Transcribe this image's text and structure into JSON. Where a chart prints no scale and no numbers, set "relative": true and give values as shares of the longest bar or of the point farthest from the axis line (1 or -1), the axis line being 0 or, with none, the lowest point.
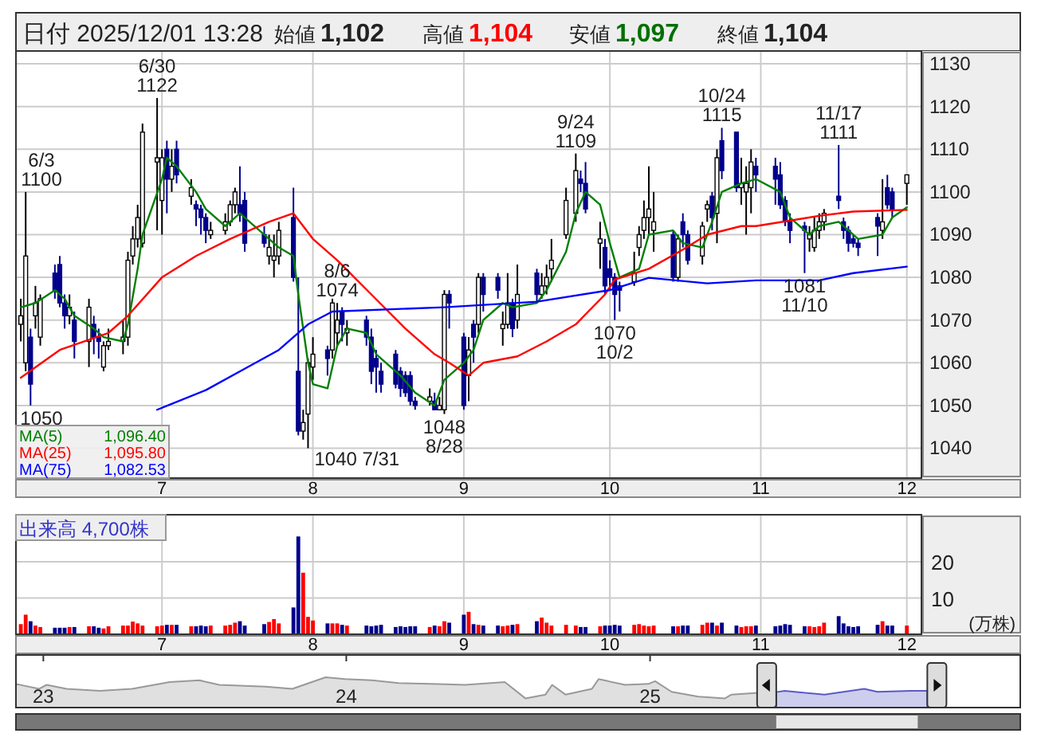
{
  "chart_data": [
    {
      "type": "other",
      "annotations": [
        "日付 2025/12/01 13:28",
        "始値 1,102",
        "高値 1,104",
        "安値 1,097",
        "終値 1,104"
      ],
      "colors": [
        "#222222",
        "#222222",
        "#ff0000",
        "#007000",
        "#222222"
      ]
    },
    {
      "type": "candlestick",
      "x": [
        "2025-06-02",
        "2025-06-03",
        "2025-06-04",
        "2025-06-05",
        "2025-06-06",
        "2025-06-09",
        "2025-06-10",
        "2025-06-11",
        "2025-06-12",
        "2025-06-13",
        "2025-06-16",
        "2025-06-17",
        "2025-06-18",
        "2025-06-19",
        "2025-06-20",
        "2025-06-23",
        "2025-06-24",
        "2025-06-25",
        "2025-06-26",
        "2025-06-27",
        "2025-06-30",
        "2025-07-01",
        "2025-07-02",
        "2025-07-03",
        "2025-07-04",
        "2025-07-07",
        "2025-07-08",
        "2025-07-09",
        "2025-07-10",
        "2025-07-11",
        "2025-07-14",
        "2025-07-15",
        "2025-07-16",
        "2025-07-17",
        "2025-07-18",
        "2025-07-22",
        "2025-07-23",
        "2025-07-24",
        "2025-07-25",
        "2025-07-28",
        "2025-07-29",
        "2025-07-30",
        "2025-07-31",
        "2025-08-01",
        "2025-08-04",
        "2025-08-05",
        "2025-08-06",
        "2025-08-07",
        "2025-08-08",
        "2025-08-12",
        "2025-08-13",
        "2025-08-14",
        "2025-08-15",
        "2025-08-18",
        "2025-08-19",
        "2025-08-20",
        "2025-08-21",
        "2025-08-22",
        "2025-08-25",
        "2025-08-26",
        "2025-08-27",
        "2025-08-28",
        "2025-08-29",
        "2025-09-01",
        "2025-09-02",
        "2025-09-03",
        "2025-09-04",
        "2025-09-05",
        "2025-09-08",
        "2025-09-09",
        "2025-09-10",
        "2025-09-11",
        "2025-09-12",
        "2025-09-16",
        "2025-09-17",
        "2025-09-18",
        "2025-09-19",
        "2025-09-22",
        "2025-09-24",
        "2025-09-25",
        "2025-09-26",
        "2025-09-29",
        "2025-09-30",
        "2025-10-01",
        "2025-10-02",
        "2025-10-03",
        "2025-10-06",
        "2025-10-07",
        "2025-10-08",
        "2025-10-09",
        "2025-10-10",
        "2025-10-14",
        "2025-10-15",
        "2025-10-16",
        "2025-10-17",
        "2025-10-20",
        "2025-10-21",
        "2025-10-22",
        "2025-10-23",
        "2025-10-24",
        "2025-10-27",
        "2025-10-28",
        "2025-10-29",
        "2025-10-30",
        "2025-10-31",
        "2025-11-04",
        "2025-11-05",
        "2025-11-06",
        "2025-11-07",
        "2025-11-10",
        "2025-11-11",
        "2025-11-12",
        "2025-11-13",
        "2025-11-14",
        "2025-11-17",
        "2025-11-18",
        "2025-11-19",
        "2025-11-20",
        "2025-11-21",
        "2025-11-25",
        "2025-11-26",
        "2025-11-27",
        "2025-11-28",
        "2025-12-01"
      ],
      "ohlc": [
        [
          1069,
          1075,
          1065,
          1071
        ],
        [
          1060,
          1100,
          1058,
          1085
        ],
        [
          1066,
          1068,
          1050,
          1055
        ],
        [
          1071,
          1078,
          1068,
          1074
        ],
        [
          1066,
          1076,
          1064,
          1075
        ],
        [
          1081,
          1083,
          1075,
          1077
        ],
        [
          1083,
          1085,
          1073,
          1074
        ],
        [
          1074,
          1076,
          1068,
          1071
        ],
        [
          1071,
          1076,
          1069,
          1073
        ],
        [
          1070,
          1072,
          1061,
          1065
        ],
        [
          1065,
          1075,
          1059,
          1073
        ],
        [
          1069,
          1071,
          1062,
          1066
        ],
        [
          1066,
          1068,
          1061,
          1065
        ],
        [
          1059,
          1065,
          1058,
          1064
        ],
        [
          1064,
          1068,
          1063,
          1065
        ],
        [
          1065,
          1070,
          1062,
          1066
        ],
        [
          1066,
          1086,
          1064,
          1084
        ],
        [
          1085,
          1092,
          1083,
          1089
        ],
        [
          1089,
          1097,
          1087,
          1094
        ],
        [
          1088,
          1116,
          1087,
          1114
        ],
        [
          1107,
          1122,
          1091,
          1108
        ],
        [
          1098,
          1110,
          1090,
          1108
        ],
        [
          1110,
          1112,
          1095,
          1103
        ],
        [
          1103,
          1110,
          1100,
          1106
        ],
        [
          1110,
          1112,
          1102,
          1104
        ],
        [
          1099,
          1103,
          1097,
          1101
        ],
        [
          1097,
          1098,
          1092,
          1096
        ],
        [
          1096,
          1097,
          1090,
          1094
        ],
        [
          1094,
          1095,
          1088,
          1091
        ],
        [
          1090,
          1093,
          1089,
          1091
        ],
        [
          1091,
          1095,
          1090,
          1093
        ],
        [
          1093,
          1098,
          1092,
          1097
        ],
        [
          1097,
          1101,
          1095,
          1100
        ],
        [
          1097,
          1106,
          1093,
          1095
        ],
        [
          1098,
          1100,
          1086,
          1088
        ],
        [
          1090,
          1092,
          1087,
          1088
        ],
        [
          1085,
          1090,
          1083,
          1087
        ],
        [
          1084,
          1090,
          1080,
          1085
        ],
        [
          1085,
          1093,
          1083,
          1091
        ],
        [
          1094,
          1101,
          1079,
          1080
        ],
        [
          1058,
          1080,
          1043,
          1044
        ],
        [
          1044,
          1049,
          1042,
          1046
        ],
        [
          1048,
          1061,
          1040,
          1060
        ],
        [
          1059,
          1066,
          1056,
          1062
        ],
        [
          1063,
          1064,
          1057,
          1061
        ],
        [
          1063,
          1075,
          1061,
          1074
        ],
        [
          1067,
          1074,
          1064,
          1070
        ],
        [
          1072,
          1073,
          1065,
          1069
        ],
        [
          1067,
          1070,
          1064,
          1068
        ],
        [
          1070,
          1071,
          1064,
          1066
        ],
        [
          1066,
          1068,
          1055,
          1058
        ],
        [
          1061,
          1063,
          1053,
          1059
        ],
        [
          1058,
          1060,
          1053,
          1055
        ],
        [
          1062,
          1063,
          1054,
          1055
        ],
        [
          1058,
          1059,
          1052,
          1054
        ],
        [
          1057,
          1058,
          1052,
          1053
        ],
        [
          1057,
          1058,
          1050,
          1051
        ],
        [
          1051,
          1052,
          1049,
          1050
        ],
        [
          1051,
          1054,
          1050,
          1052
        ],
        [
          1051,
          1053,
          1049,
          1049
        ],
        [
          1049,
          1052,
          1049,
          1050
        ],
        [
          1049,
          1077,
          1048,
          1076
        ],
        [
          1076,
          1077,
          1068,
          1074
        ],
        [
          1066,
          1067,
          1049,
          1050
        ],
        [
          1057,
          1066,
          1051,
          1063
        ],
        [
          1069,
          1070,
          1060,
          1066
        ],
        [
          1069,
          1081,
          1067,
          1080
        ],
        [
          1080,
          1081,
          1072,
          1076
        ],
        [
          1080,
          1081,
          1075,
          1077
        ],
        [
          1068,
          1072,
          1064,
          1069
        ],
        [
          1069,
          1081,
          1068,
          1074
        ],
        [
          1074,
          1075,
          1066,
          1068
        ],
        [
          1070,
          1083,
          1068,
          1076
        ],
        [
          1081,
          1082,
          1074,
          1076
        ],
        [
          1076,
          1081,
          1075,
          1078
        ],
        [
          1078,
          1083,
          1076,
          1080
        ],
        [
          1082,
          1089,
          1079,
          1084
        ],
        [
          1090,
          1101,
          1089,
          1098
        ],
        [
          1095,
          1109,
          1093,
          1105
        ],
        [
          1103,
          1105,
          1100,
          1102
        ],
        [
          1102,
          1107,
          1095,
          1096
        ],
        [
          1088,
          1093,
          1082,
          1089
        ],
        [
          1087,
          1089,
          1076,
          1078
        ],
        [
          1082,
          1084,
          1077,
          1080
        ],
        [
          1080,
          1081,
          1070,
          1076
        ],
        [
          1078,
          1079,
          1072,
          1077
        ],
        [
          1079,
          1086,
          1078,
          1081
        ],
        [
          1087,
          1092,
          1085,
          1090
        ],
        [
          1091,
          1098,
          1089,
          1094
        ],
        [
          1094,
          1106,
          1090,
          1096
        ],
        [
          1091,
          1100,
          1086,
          1093
        ],
        [
          1090,
          1091,
          1079,
          1080
        ],
        [
          1080,
          1090,
          1079,
          1089
        ],
        [
          1093,
          1095,
          1087,
          1090
        ],
        [
          1090,
          1091,
          1083,
          1084
        ],
        [
          1085,
          1093,
          1083,
          1092
        ],
        [
          1096,
          1098,
          1093,
          1097
        ],
        [
          1099,
          1100,
          1091,
          1094
        ],
        [
          1095,
          1110,
          1088,
          1108
        ],
        [
          1112,
          1115,
          1103,
          1105
        ],
        [
          1114,
          1114,
          1100,
          1101
        ],
        [
          1101,
          1108,
          1097,
          1102
        ],
        [
          1100,
          1106,
          1090,
          1102
        ],
        [
          1101,
          1110,
          1095,
          1107
        ],
        [
          1106,
          1108,
          1100,
          1104
        ],
        [
          1106,
          1108,
          1097,
          1103
        ],
        [
          1104,
          1107,
          1096,
          1097
        ],
        [
          1098,
          1099,
          1092,
          1093
        ],
        [
          1093,
          1095,
          1088,
          1091
        ],
        [
          1092,
          1093,
          1081,
          1091
        ],
        [
          1089,
          1092,
          1086,
          1090
        ],
        [
          1087,
          1094,
          1086,
          1091
        ],
        [
          1091,
          1095,
          1089,
          1093
        ],
        [
          1093,
          1096,
          1091,
          1095
        ],
        [
          1099,
          1111,
          1096,
          1098
        ],
        [
          1093,
          1094,
          1089,
          1091
        ],
        [
          1091,
          1092,
          1086,
          1088
        ],
        [
          1089,
          1090,
          1087,
          1088
        ],
        [
          1088,
          1089,
          1085,
          1087
        ],
        [
          1094,
          1095,
          1085,
          1092
        ],
        [
          1091,
          1103,
          1089,
          1093
        ],
        [
          1101,
          1104,
          1096,
          1097
        ],
        [
          1100,
          1101,
          1094,
          1096
        ],
        [
          1102,
          1104,
          1097,
          1104
        ]
      ],
      "series": [
        {
          "name": "MA(5) 1,096.40",
          "type": "line",
          "color": "#008000",
          "x": [
            "2025-06-02",
            "2025-06-05",
            "2025-06-09",
            "2025-06-11",
            "2025-06-13",
            "2025-06-17",
            "2025-06-19",
            "2025-06-23",
            "2025-06-24",
            "2025-06-26",
            "2025-06-27",
            "2025-07-01",
            "2025-07-02",
            "2025-07-04",
            "2025-07-08",
            "2025-07-10",
            "2025-07-14",
            "2025-07-16",
            "2025-07-17",
            "2025-07-18",
            "2025-07-23",
            "2025-07-25",
            "2025-07-28",
            "2025-07-29",
            "2025-07-31",
            "2025-08-01",
            "2025-08-04",
            "2025-08-06",
            "2025-08-08",
            "2025-08-12",
            "2025-08-14",
            "2025-08-19",
            "2025-08-22",
            "2025-08-26",
            "2025-08-28",
            "2025-09-01",
            "2025-09-03",
            "2025-09-05",
            "2025-09-09",
            "2025-09-11",
            "2025-09-16",
            "2025-09-18",
            "2025-09-22",
            "2025-09-24",
            "2025-09-26",
            "2025-09-29",
            "2025-10-01",
            "2025-10-03",
            "2025-10-07",
            "2025-10-09",
            "2025-10-14",
            "2025-10-16",
            "2025-10-20",
            "2025-10-22",
            "2025-10-24",
            "2025-10-28",
            "2025-10-31",
            "2025-11-05",
            "2025-11-07",
            "2025-11-11",
            "2025-11-13",
            "2025-11-17",
            "2025-11-19",
            "2025-11-21",
            "2025-11-26",
            "2025-11-28",
            "2025-12-01"
          ],
          "values": [
            1073,
            1074,
            1077,
            1075,
            1071,
            1068,
            1066,
            1065,
            1069,
            1082,
            1090,
            1103,
            1108,
            1106,
            1100,
            1096,
            1092,
            1094,
            1095,
            1094,
            1089,
            1087,
            1085,
            1076,
            1060,
            1055,
            1054,
            1064,
            1068,
            1067,
            1062,
            1057,
            1053,
            1050,
            1056,
            1060,
            1063,
            1070,
            1074,
            1073,
            1074,
            1077,
            1086,
            1095,
            1100,
            1097,
            1088,
            1080,
            1082,
            1090,
            1091,
            1088,
            1087,
            1093,
            1100,
            1102,
            1103,
            1100,
            1094,
            1090,
            1092,
            1093,
            1091,
            1089,
            1090,
            1094,
            1096.4
          ]
        },
        {
          "name": "MA(25) 1,095.80",
          "type": "line",
          "color": "#ff0000",
          "x": [
            "2025-06-02",
            "2025-06-10",
            "2025-06-20",
            "2025-06-24",
            "2025-07-01",
            "2025-07-08",
            "2025-07-15",
            "2025-07-23",
            "2025-07-28",
            "2025-08-01",
            "2025-08-06",
            "2025-08-13",
            "2025-08-20",
            "2025-08-26",
            "2025-08-29",
            "2025-09-02",
            "2025-09-05",
            "2025-09-12",
            "2025-09-18",
            "2025-09-24",
            "2025-09-30",
            "2025-10-02",
            "2025-10-09",
            "2025-10-16",
            "2025-10-21",
            "2025-10-28",
            "2025-10-31",
            "2025-11-13",
            "2025-11-20",
            "2025-12-01"
          ],
          "values": [
            1056.5,
            1063,
            1067,
            1071,
            1080,
            1085,
            1089,
            1093,
            1095,
            1089,
            1084,
            1076,
            1068,
            1062,
            1060,
            1057,
            1060,
            1061.5,
            1065,
            1069,
            1076,
            1079.5,
            1082,
            1086.5,
            1090,
            1092,
            1092,
            1094.4,
            1095.4,
            1095.8
          ]
        },
        {
          "name": "MA(75) 1,082.53",
          "type": "line",
          "color": "#0000ff",
          "x": [
            "2025-06-30",
            "2025-07-10",
            "2025-07-18",
            "2025-07-25",
            "2025-07-31",
            "2025-08-05",
            "2025-08-28",
            "2025-09-16",
            "2025-10-01",
            "2025-10-09",
            "2025-10-21",
            "2025-10-31",
            "2025-11-13",
            "2025-11-20",
            "2025-12-01"
          ],
          "values": [
            1049,
            1053.6,
            1058.6,
            1063,
            1069,
            1072,
            1073,
            1074.3,
            1077,
            1079.9,
            1078.6,
            1079.3,
            1079.3,
            1081,
            1082.5
          ]
        }
      ],
      "annotations": [
        {
          "text": "6/3 1100",
          "x": "2025-06-03",
          "y": 1100
        },
        {
          "text": "1050",
          "x": "2025-06-04",
          "y": 1050
        },
        {
          "text": "6/30 1122",
          "x": "2025-06-30",
          "y": 1122
        },
        {
          "text": "1040 7/31",
          "x": "2025-07-31",
          "y": 1040
        },
        {
          "text": "8/6 1074",
          "x": "2025-08-06",
          "y": 1074
        },
        {
          "text": "1048 8/28",
          "x": "2025-08-28",
          "y": 1048
        },
        {
          "text": "9/24 1109",
          "x": "2025-09-24",
          "y": 1109
        },
        {
          "text": "1070 10/2",
          "x": "2025-10-02",
          "y": 1070
        },
        {
          "text": "10/24 1115",
          "x": "2025-10-24",
          "y": 1115
        },
        {
          "text": "1081 11/10",
          "x": "2025-11-10",
          "y": 1081
        },
        {
          "text": "11/17 1111",
          "x": "2025-11-17",
          "y": 1111
        }
      ],
      "xlim": [
        "2025-06-01",
        "2025-12-04"
      ],
      "xticks": [
        {
          "value": "2025-07-01",
          "label": "7"
        },
        {
          "value": "2025-08-01",
          "label": "8"
        },
        {
          "value": "2025-09-01",
          "label": "9"
        },
        {
          "value": "2025-10-01",
          "label": "10"
        },
        {
          "value": "2025-11-01",
          "label": "11"
        },
        {
          "value": "2025-12-01",
          "label": "12"
        }
      ],
      "ylim": [
        1033,
        1133
      ],
      "yticks": [
        1040,
        1050,
        1060,
        1070,
        1080,
        1090,
        1100,
        1110,
        1120,
        1130
      ],
      "grid": true
    },
    {
      "type": "bar",
      "title": "出来高 4,700株",
      "ylabel": "(万株)",
      "x": [
        "2025-06-02",
        "2025-06-03",
        "2025-06-04",
        "2025-06-05",
        "2025-06-06",
        "2025-06-09",
        "2025-06-10",
        "2025-06-11",
        "2025-06-12",
        "2025-06-13",
        "2025-06-16",
        "2025-06-17",
        "2025-06-18",
        "2025-06-19",
        "2025-06-20",
        "2025-06-23",
        "2025-06-24",
        "2025-06-25",
        "2025-06-26",
        "2025-06-27",
        "2025-06-30",
        "2025-07-01",
        "2025-07-02",
        "2025-07-03",
        "2025-07-04",
        "2025-07-07",
        "2025-07-08",
        "2025-07-09",
        "2025-07-10",
        "2025-07-11",
        "2025-07-14",
        "2025-07-15",
        "2025-07-16",
        "2025-07-17",
        "2025-07-18",
        "2025-07-22",
        "2025-07-23",
        "2025-07-24",
        "2025-07-25",
        "2025-07-28",
        "2025-07-29",
        "2025-07-30",
        "2025-07-31",
        "2025-08-01",
        "2025-08-04",
        "2025-08-05",
        "2025-08-06",
        "2025-08-07",
        "2025-08-08",
        "2025-08-12",
        "2025-08-13",
        "2025-08-14",
        "2025-08-15",
        "2025-08-18",
        "2025-08-19",
        "2025-08-20",
        "2025-08-21",
        "2025-08-22",
        "2025-08-25",
        "2025-08-26",
        "2025-08-27",
        "2025-08-28",
        "2025-08-29",
        "2025-09-01",
        "2025-09-02",
        "2025-09-03",
        "2025-09-04",
        "2025-09-05",
        "2025-09-08",
        "2025-09-09",
        "2025-09-10",
        "2025-09-11",
        "2025-09-12",
        "2025-09-16",
        "2025-09-17",
        "2025-09-18",
        "2025-09-19",
        "2025-09-22",
        "2025-09-24",
        "2025-09-25",
        "2025-09-26",
        "2025-09-29",
        "2025-09-30",
        "2025-10-01",
        "2025-10-02",
        "2025-10-03",
        "2025-10-06",
        "2025-10-07",
        "2025-10-08",
        "2025-10-09",
        "2025-10-10",
        "2025-10-14",
        "2025-10-15",
        "2025-10-16",
        "2025-10-17",
        "2025-10-20",
        "2025-10-21",
        "2025-10-22",
        "2025-10-23",
        "2025-10-24",
        "2025-10-27",
        "2025-10-28",
        "2025-10-29",
        "2025-10-30",
        "2025-10-31",
        "2025-11-04",
        "2025-11-05",
        "2025-11-06",
        "2025-11-07",
        "2025-11-10",
        "2025-11-11",
        "2025-11-12",
        "2025-11-13",
        "2025-11-14",
        "2025-11-17",
        "2025-11-18",
        "2025-11-19",
        "2025-11-20",
        "2025-11-21",
        "2025-11-25",
        "2025-11-26",
        "2025-11-27",
        "2025-11-28",
        "2025-12-01"
      ],
      "values": [
        2.8,
        5.4,
        3.6,
        2.4,
        2,
        1.8,
        1.8,
        1.8,
        2,
        2,
        2.2,
        2.2,
        1.8,
        1.6,
        2.2,
        2.4,
        2.4,
        3.5,
        3,
        2.4,
        2.2,
        2.4,
        2.6,
        2.6,
        2.6,
        2.2,
        2.2,
        2.4,
        2.2,
        2.4,
        2.4,
        2.6,
        3.2,
        3.6,
        2.4,
        2.8,
        3.4,
        4.2,
        3,
        7.4,
        27,
        17,
        4.8,
        3.8,
        3,
        3,
        3,
        2.6,
        2.4,
        2.4,
        2.2,
        2.4,
        2.6,
        2,
        2.2,
        2,
        2.2,
        2.2,
        2,
        2.4,
        2.2,
        3.6,
        3.2,
        5.4,
        6.2,
        2.8,
        2.6,
        2.4,
        2.4,
        2.2,
        2.4,
        2.6,
        2.8,
        3.6,
        4.6,
        3.2,
        2.4,
        2.6,
        2.4,
        2,
        2,
        2.2,
        2.4,
        2.4,
        2.6,
        2.4,
        2.6,
        2.8,
        2.4,
        2.2,
        2.4,
        2.2,
        2.2,
        2.4,
        2.4,
        2.6,
        3.2,
        3.2,
        2.4,
        3.2,
        2.4,
        2,
        2.2,
        2.2,
        2.4,
        2.2,
        2.4,
        2.8,
        2.6,
        2.2,
        2.2,
        2,
        2.2,
        3.2,
        5,
        3,
        2.2,
        2,
        2.2,
        2.6,
        3.6,
        2.4,
        2.4,
        2.4
      ],
      "colors": [
        "#ff0000",
        "#ff0000",
        "#00008b",
        "#ff0000",
        "#ff0000",
        "#00008b",
        "#00008b",
        "#00008b",
        "#ff0000",
        "#00008b",
        "#ff0000",
        "#00008b",
        "#00008b",
        "#ff0000",
        "#ff0000",
        "#ff0000",
        "#ff0000",
        "#ff0000",
        "#ff0000",
        "#ff0000",
        "#ff0000",
        "#ff0000",
        "#00008b",
        "#ff0000",
        "#00008b",
        "#ff0000",
        "#00008b",
        "#00008b",
        "#00008b",
        "#ff0000",
        "#ff0000",
        "#ff0000",
        "#ff0000",
        "#00008b",
        "#00008b",
        "#00008b",
        "#ff0000",
        "#ff0000",
        "#ff0000",
        "#00008b",
        "#00008b",
        "#ff0000",
        "#ff0000",
        "#ff0000",
        "#00008b",
        "#ff0000",
        "#ff0000",
        "#00008b",
        "#ff0000",
        "#00008b",
        "#00008b",
        "#00008b",
        "#00008b",
        "#00008b",
        "#00008b",
        "#00008b",
        "#00008b",
        "#00008b",
        "#ff0000",
        "#00008b",
        "#ff0000",
        "#ff0000",
        "#00008b",
        "#00008b",
        "#ff0000",
        "#00008b",
        "#ff0000",
        "#00008b",
        "#00008b",
        "#ff0000",
        "#ff0000",
        "#00008b",
        "#ff0000",
        "#00008b",
        "#ff0000",
        "#ff0000",
        "#ff0000",
        "#ff0000",
        "#ff0000",
        "#00008b",
        "#00008b",
        "#ff0000",
        "#00008b",
        "#00008b",
        "#00008b",
        "#00008b",
        "#ff0000",
        "#ff0000",
        "#ff0000",
        "#ff0000",
        "#ff0000",
        "#00008b",
        "#ff0000",
        "#00008b",
        "#00008b",
        "#ff0000",
        "#ff0000",
        "#00008b",
        "#ff0000",
        "#00008b",
        "#00008b",
        "#ff0000",
        "#ff0000",
        "#ff0000",
        "#00008b",
        "#00008b",
        "#00008b",
        "#00008b",
        "#00008b",
        "#00008b",
        "#ff0000",
        "#ff0000",
        "#ff0000",
        "#ff0000",
        "#00008b",
        "#00008b",
        "#00008b",
        "#00008b",
        "#00008b",
        "#00008b",
        "#ff0000",
        "#00008b",
        "#00008b",
        "#ff0000"
      ],
      "xlim": [
        "2025-06-01",
        "2025-12-04"
      ],
      "xticks": [
        {
          "value": "2025-07-01",
          "label": "7"
        },
        {
          "value": "2025-08-01",
          "label": "8"
        },
        {
          "value": "2025-09-01",
          "label": "9"
        },
        {
          "value": "2025-10-01",
          "label": "10"
        },
        {
          "value": "2025-11-01",
          "label": "11"
        },
        {
          "value": "2025-12-01",
          "label": "12"
        }
      ],
      "ylim": [
        0,
        33
      ],
      "yticks": [
        10,
        20
      ],
      "grid": true
    },
    {
      "type": "area",
      "relative": true,
      "tick_labels": "x",
      "series": [
        {
          "color": "#999999",
          "x": [
            "2022-11-29",
            "2022-12-27",
            "2023-01-05",
            "2023-01-29",
            "2023-03-10",
            "2023-04-18",
            "2023-06-02",
            "2023-07-08",
            "2023-08-01",
            "2023-09-26",
            "2023-10-28",
            "2023-12-07",
            "2023-12-31",
            "2024-02-01",
            "2024-03-04",
            "2024-04-13",
            "2024-05-23",
            "2024-07-10",
            "2024-08-04",
            "2024-08-28",
            "2024-09-05",
            "2024-09-21",
            "2024-10-23",
            "2024-10-31",
            "2024-12-02",
            "2024-12-30",
            "2025-01-07",
            "2025-01-27",
            "2025-02-28",
            "2025-04-01",
            "2025-04-09",
            "2025-05-11",
            "2025-06-02"
          ],
          "values": [
            0.78,
            0.62,
            0.75,
            0.62,
            0.55,
            0.62,
            0.84,
            0.9,
            0.75,
            0.69,
            0.62,
            1,
            0.94,
            0.9,
            0.81,
            0.78,
            0.75,
            0.84,
            0.3,
            0.43,
            0.75,
            0.43,
            0.62,
            0.94,
            0.75,
            0.78,
            0.87,
            0.52,
            0.36,
            0.3,
            0.43,
            0.49,
            0.51
          ]
        },
        {
          "color": "#5a5ac8",
          "x": [
            "2025-06-02",
            "2025-06-12",
            "2025-07-30",
            "2025-09-16",
            "2025-10-02",
            "2025-11-11",
            "2025-12-01"
          ],
          "values": [
            0.51,
            0.55,
            0.43,
            0.62,
            0.52,
            0.55,
            0.55
          ]
        }
      ],
      "xlim": [
        "2022-11-29",
        "2026-03-23"
      ],
      "xticks": [
        {
          "value": "2023-01-01",
          "label": "23"
        },
        {
          "value": "2024-01-01",
          "label": "24"
        },
        {
          "value": "2025-01-01",
          "label": "25"
        }
      ]
    }
  ]
}
